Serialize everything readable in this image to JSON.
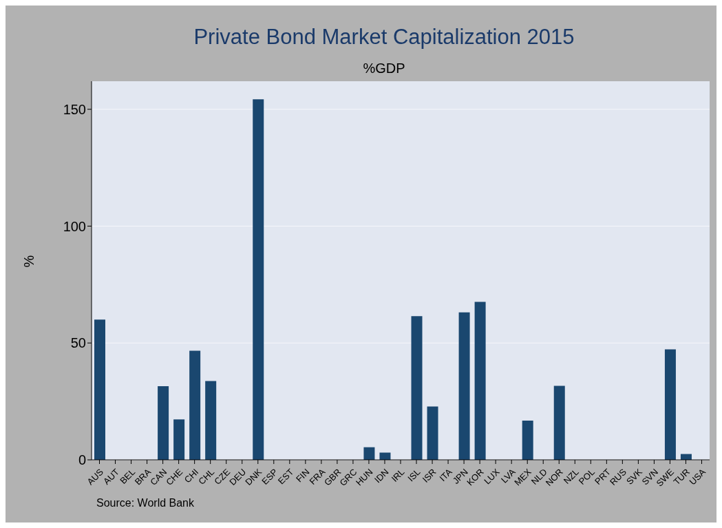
{
  "chart_data": {
    "type": "bar",
    "title": "Private Bond Market Capitalization 2015",
    "subtitle": "%GDP",
    "ylabel": "%",
    "annotations": [
      "Source: World Bank"
    ],
    "categories": [
      "AUS",
      "AUT",
      "BEL",
      "BRA",
      "CAN",
      "CHE",
      "CHI",
      "CHL",
      "CZE",
      "DEU",
      "DNK",
      "ESP",
      "EST",
      "FIN",
      "FRA",
      "GBR",
      "GRC",
      "HUN",
      "IDN",
      "IRL",
      "ISL",
      "ISR",
      "ITA",
      "JPN",
      "KOR",
      "LUX",
      "LVA",
      "MEX",
      "NLD",
      "NOR",
      "NZL",
      "POL",
      "PRT",
      "RUS",
      "SVK",
      "SVN",
      "SWE",
      "TUR",
      "USA"
    ],
    "values": [
      60.0,
      null,
      null,
      null,
      31.5,
      17.3,
      46.7,
      33.7,
      null,
      null,
      154.3,
      null,
      null,
      null,
      null,
      null,
      null,
      5.4,
      3.1,
      null,
      61.5,
      22.8,
      null,
      63.1,
      67.6,
      null,
      null,
      16.8,
      null,
      31.7,
      null,
      null,
      null,
      null,
      null,
      null,
      47.3,
      2.5,
      null
    ],
    "color": "#1a476f",
    "ylim": [
      0,
      162
    ],
    "yticks": [
      0,
      50,
      100,
      150
    ],
    "grid": "y",
    "legend": false
  }
}
